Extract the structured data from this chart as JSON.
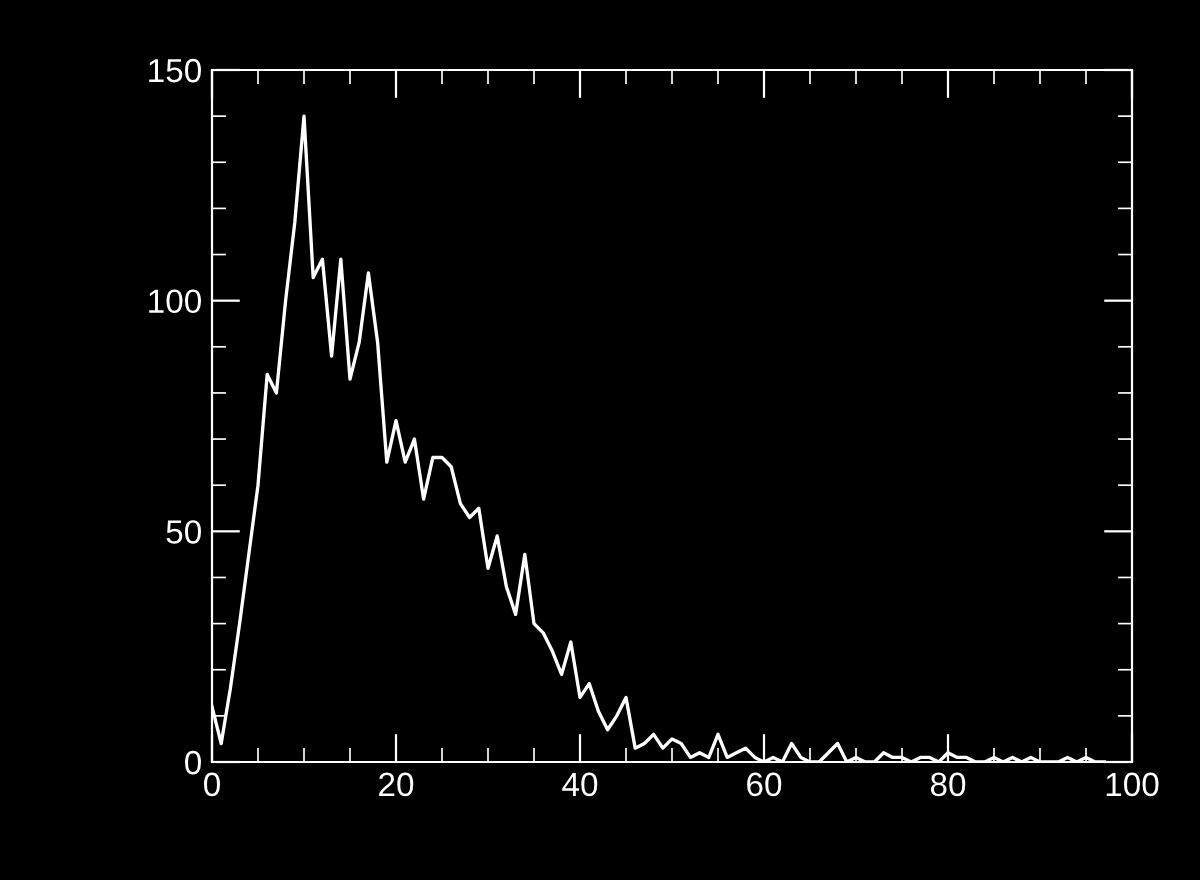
{
  "chart_data": {
    "type": "line",
    "color": "#ffffff",
    "x": [
      0,
      1,
      2,
      3,
      4,
      5,
      6,
      7,
      8,
      9,
      10,
      11,
      12,
      13,
      14,
      15,
      16,
      17,
      18,
      19,
      20,
      21,
      22,
      23,
      24,
      25,
      26,
      27,
      28,
      29,
      30,
      31,
      32,
      33,
      34,
      35,
      36,
      37,
      38,
      39,
      40,
      41,
      42,
      43,
      44,
      45,
      46,
      47,
      48,
      49,
      50,
      51,
      52,
      53,
      54,
      55,
      56,
      57,
      58,
      59,
      60,
      61,
      62,
      63,
      64,
      65,
      66,
      67,
      68,
      69,
      70,
      71,
      72,
      73,
      74,
      75,
      76,
      77,
      78,
      79,
      80,
      81,
      82,
      83,
      84,
      85,
      86,
      87,
      88,
      89,
      90,
      91,
      92,
      93,
      94,
      95,
      96,
      97
    ],
    "values": [
      12,
      4,
      16,
      30,
      45,
      60,
      84,
      80,
      100,
      117,
      140,
      105,
      109,
      88,
      109,
      83,
      91,
      106,
      91,
      65,
      74,
      65,
      70,
      57,
      66,
      66,
      64,
      56,
      53,
      55,
      42,
      49,
      38,
      32,
      45,
      30,
      28,
      24,
      19,
      26,
      14,
      17,
      11,
      7,
      10,
      14,
      3,
      4,
      6,
      3,
      5,
      4,
      1,
      2,
      1,
      6,
      1,
      2,
      3,
      1,
      0,
      1,
      0,
      4,
      1,
      0,
      0,
      2,
      4,
      0,
      1,
      0,
      0,
      2,
      1,
      1,
      0,
      1,
      1,
      0,
      2,
      1,
      1,
      0,
      0,
      1,
      0,
      1,
      0,
      1,
      0,
      0,
      0,
      1,
      0,
      1,
      0,
      0
    ],
    "xlim": [
      0,
      100
    ],
    "ylim": [
      0,
      150
    ],
    "xticks": [
      0,
      20,
      40,
      60,
      80,
      100
    ],
    "yticks": [
      0,
      50,
      100,
      150
    ],
    "grid": false,
    "marker": "none",
    "line_style": "solid"
  }
}
